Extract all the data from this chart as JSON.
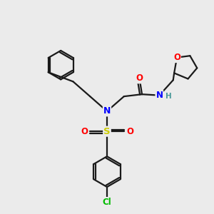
{
  "background_color": "#ebebeb",
  "bond_color": "#1a1a1a",
  "atom_colors": {
    "O": "#ff0000",
    "N": "#0000ff",
    "S": "#cccc00",
    "Cl": "#00bb00",
    "H": "#4a9999",
    "C": "#1a1a1a"
  },
  "figsize": [
    3.0,
    3.0
  ],
  "dpi": 100,
  "lw": 1.6,
  "ring_lw": 1.6
}
